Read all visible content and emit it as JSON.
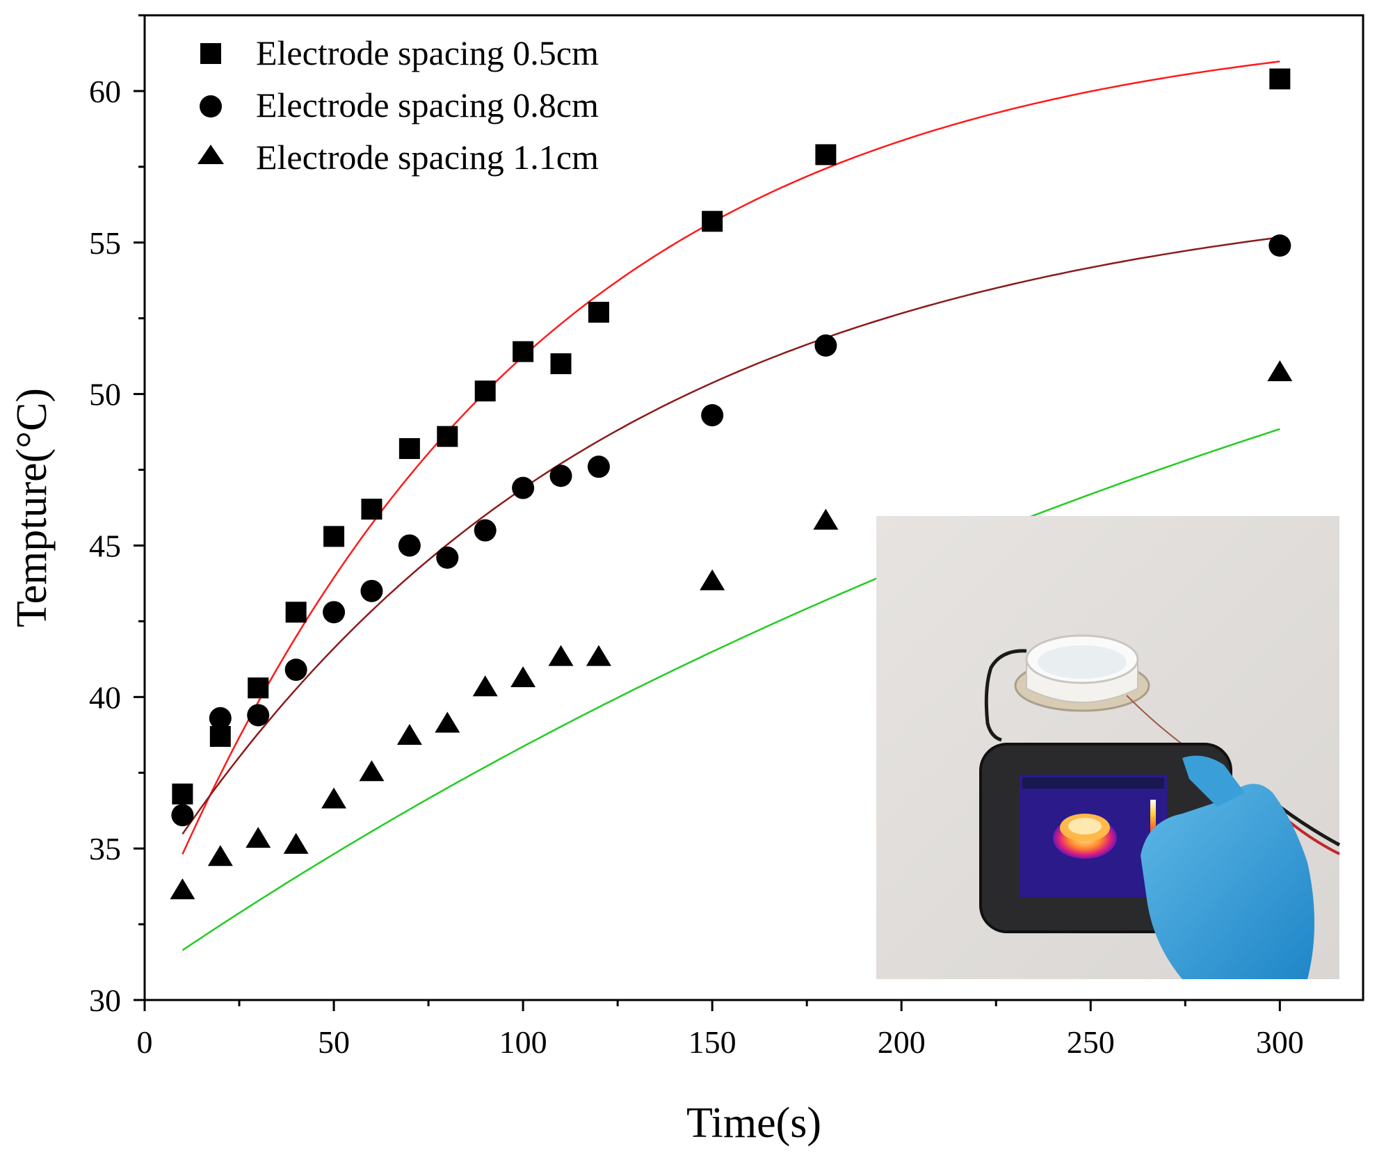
{
  "chart_data": {
    "type": "scatter",
    "title": "",
    "xlabel": "Time(s)",
    "ylabel": "Tempture(°C)",
    "xlim": [
      0,
      322
    ],
    "ylim": [
      30,
      62.5
    ],
    "xticks": [
      0,
      50,
      100,
      150,
      200,
      250,
      300
    ],
    "yticks": [
      30,
      35,
      40,
      45,
      50,
      55,
      60
    ],
    "x_minor_step": 25,
    "y_minor_step": 2.5,
    "grid": false,
    "legend_position": "top-left",
    "series": [
      {
        "name": "Electrode spacing 0.5cm",
        "marker": "square",
        "fit_color": "#ff1a1a",
        "x": [
          10,
          20,
          30,
          40,
          50,
          60,
          70,
          80,
          90,
          100,
          110,
          120,
          150,
          180,
          300
        ],
        "y": [
          36.8,
          38.7,
          40.3,
          42.8,
          45.3,
          46.2,
          48.2,
          48.6,
          50.1,
          51.4,
          51.0,
          52.7,
          55.7,
          57.9,
          60.4
        ],
        "fit": {
          "form": "a - b*exp(-x/t)",
          "a": 62.5,
          "b": 30.6,
          "t": 100
        }
      },
      {
        "name": "Electrode spacing 0.8cm",
        "marker": "circle",
        "fit_color": "#8b1a1a",
        "x": [
          10,
          20,
          30,
          40,
          50,
          60,
          70,
          80,
          90,
          100,
          110,
          120,
          150,
          180,
          300
        ],
        "y": [
          36.1,
          39.3,
          39.4,
          40.9,
          42.8,
          43.5,
          45.0,
          44.6,
          45.5,
          46.9,
          47.3,
          47.6,
          49.3,
          51.6,
          54.9
        ],
        "fit": {
          "form": "a - b*exp(-x/t)",
          "a": 57.1,
          "b": 23.5,
          "t": 120
        }
      },
      {
        "name": "Electrode spacing 1.1cm",
        "marker": "triangle",
        "fit_color": "#22cc22",
        "x": [
          10,
          20,
          30,
          40,
          50,
          60,
          70,
          80,
          90,
          100,
          110,
          120,
          150,
          180,
          300
        ],
        "y": [
          33.6,
          34.7,
          35.3,
          35.1,
          36.6,
          37.5,
          38.7,
          39.1,
          40.3,
          40.6,
          41.3,
          41.3,
          43.8,
          45.8,
          50.7
        ],
        "fit": {
          "form": "a - b*exp(-x/t)",
          "a": 65.0,
          "b": 34.2,
          "t": 400
        }
      }
    ],
    "inset": {
      "content": "photo of a handheld thermal imaging camera measuring a heated white dish connected to electrode clips",
      "position": "bottom-right"
    }
  }
}
